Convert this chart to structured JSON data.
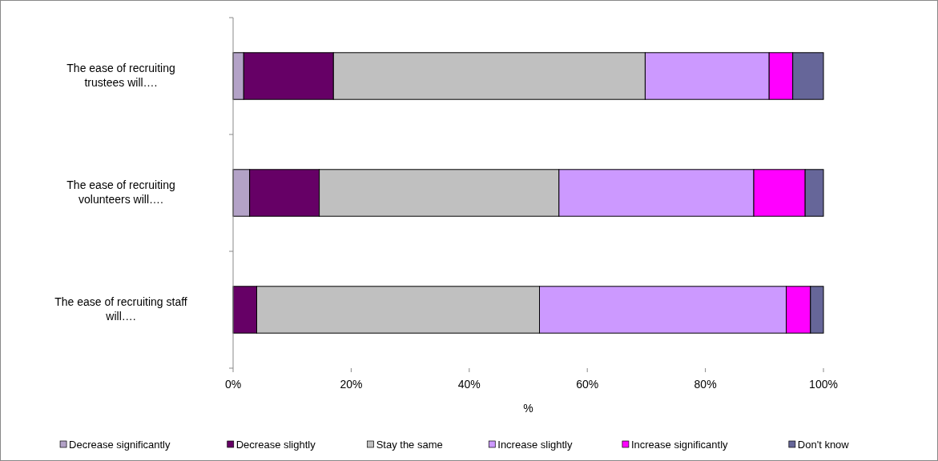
{
  "chart_data": {
    "type": "bar",
    "orientation": "horizontal",
    "stacked": true,
    "categories": [
      "The ease of recruiting trustees will….",
      "The ease of recruiting volunteers will….",
      "The ease of recruiting staff will…."
    ],
    "series": [
      {
        "name": "Decrease significantly",
        "color": "#b3a2c7",
        "values": [
          1.8,
          2.8,
          0
        ]
      },
      {
        "name": "Decrease slightly",
        "color": "#660066",
        "values": [
          15.2,
          11.8,
          4.0
        ]
      },
      {
        "name": "Stay the same",
        "color": "#c0c0c0",
        "values": [
          52.8,
          40.6,
          47.9
        ]
      },
      {
        "name": "Increase slightly",
        "color": "#cc99ff",
        "values": [
          21.0,
          33.0,
          41.8
        ]
      },
      {
        "name": "Increase significantly",
        "color": "#ff00ff",
        "values": [
          4.0,
          8.7,
          4.1
        ]
      },
      {
        "name": "Don't know",
        "color": "#666699",
        "values": [
          5.2,
          3.1,
          2.2
        ]
      }
    ],
    "xlabel": "%",
    "xlim": [
      0,
      100
    ],
    "xticks": [
      {
        "value": 0,
        "label": "0%"
      },
      {
        "value": 20,
        "label": "20%"
      },
      {
        "value": 40,
        "label": "40%"
      },
      {
        "value": 60,
        "label": "60%"
      },
      {
        "value": 80,
        "label": "80%"
      },
      {
        "value": 100,
        "label": "100%"
      }
    ],
    "grid": false,
    "legend": "bottom"
  }
}
